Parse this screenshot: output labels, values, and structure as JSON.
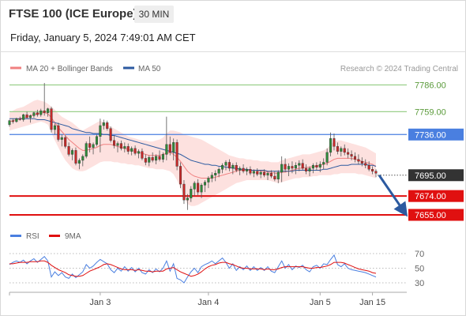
{
  "header": {
    "instrument": "FTSE 100 (ICE Europe)",
    "timeframe": "30 MIN",
    "datetime": "Friday, January 5, 2024 7:49:01 AM CET"
  },
  "chart_data": {
    "type": "candlestick",
    "legend": [
      {
        "name": "MA 20 + Bollinger Bands",
        "color": "#f08080"
      },
      {
        "name": "MA 50",
        "color": "#2c5aa0"
      }
    ],
    "copyright": "Research © 2024 Trading Central",
    "price_ylim": [
      7648,
      7790
    ],
    "levels": [
      {
        "value": 7786.0,
        "label": "7786.00",
        "kind": "resistance-minor",
        "color": "#9bd08b",
        "text_color": "#5a9a3a"
      },
      {
        "value": 7759.0,
        "label": "7759.00",
        "kind": "resistance-minor",
        "color": "#9bd08b",
        "text_color": "#5a9a3a"
      },
      {
        "value": 7736.0,
        "label": "7736.00",
        "kind": "pivot",
        "color": "#4a7fe0",
        "text_color": "#ffffff"
      },
      {
        "value": 7695.0,
        "label": "7695.00",
        "kind": "last",
        "color": "#333333",
        "text_color": "#ffffff"
      },
      {
        "value": 7674.0,
        "label": "7674.00",
        "kind": "target",
        "color": "#e01010",
        "text_color": "#ffffff"
      },
      {
        "value": 7655.0,
        "label": "7655.00",
        "kind": "target",
        "color": "#e01010",
        "text_color": "#ffffff"
      }
    ],
    "forecast_arrow": {
      "from_price": 7695,
      "to_price": 7659
    },
    "candles": [
      [
        7746,
        7751,
        7744,
        7750
      ],
      [
        7750,
        7752,
        7747,
        7749
      ],
      [
        7749,
        7753,
        7748,
        7752
      ],
      [
        7752,
        7754,
        7750,
        7751
      ],
      [
        7751,
        7757,
        7749,
        7756
      ],
      [
        7756,
        7759,
        7752,
        7753
      ],
      [
        7753,
        7756,
        7748,
        7755
      ],
      [
        7755,
        7759,
        7753,
        7758
      ],
      [
        7758,
        7761,
        7754,
        7756
      ],
      [
        7756,
        7762,
        7754,
        7760
      ],
      [
        7760,
        7788,
        7755,
        7758
      ],
      [
        7758,
        7763,
        7754,
        7762
      ],
      [
        7762,
        7764,
        7738,
        7741
      ],
      [
        7741,
        7747,
        7736,
        7745
      ],
      [
        7745,
        7748,
        7729,
        7731
      ],
      [
        7731,
        7736,
        7724,
        7733
      ],
      [
        7733,
        7735,
        7722,
        7724
      ],
      [
        7724,
        7728,
        7714,
        7716
      ],
      [
        7716,
        7722,
        7710,
        7720
      ],
      [
        7720,
        7723,
        7705,
        7707
      ],
      [
        7707,
        7712,
        7701,
        7710
      ],
      [
        7710,
        7716,
        7704,
        7714
      ],
      [
        7714,
        7729,
        7712,
        7727
      ],
      [
        7727,
        7734,
        7718,
        7723
      ],
      [
        7723,
        7728,
        7716,
        7726
      ],
      [
        7726,
        7736,
        7724,
        7734
      ],
      [
        7734,
        7752,
        7718,
        7745
      ],
      [
        7745,
        7751,
        7741,
        7748
      ],
      [
        7748,
        7750,
        7740,
        7742
      ],
      [
        7742,
        7744,
        7728,
        7730
      ],
      [
        7730,
        7735,
        7722,
        7725
      ],
      [
        7725,
        7729,
        7718,
        7727
      ],
      [
        7727,
        7730,
        7720,
        7722
      ],
      [
        7722,
        7728,
        7718,
        7724
      ],
      [
        7724,
        7727,
        7716,
        7719
      ],
      [
        7719,
        7724,
        7715,
        7722
      ],
      [
        7722,
        7725,
        7715,
        7717
      ],
      [
        7717,
        7721,
        7712,
        7719
      ],
      [
        7719,
        7722,
        7710,
        7712
      ],
      [
        7712,
        7716,
        7705,
        7708
      ],
      [
        7708,
        7715,
        7704,
        7713
      ],
      [
        7713,
        7718,
        7708,
        7710
      ],
      [
        7710,
        7716,
        7706,
        7714
      ],
      [
        7714,
        7720,
        7709,
        7711
      ],
      [
        7711,
        7718,
        7708,
        7716
      ],
      [
        7716,
        7754,
        7710,
        7726
      ],
      [
        7726,
        7734,
        7715,
        7718
      ],
      [
        7718,
        7732,
        7710,
        7728
      ],
      [
        7728,
        7731,
        7700,
        7704
      ],
      [
        7704,
        7708,
        7682,
        7686
      ],
      [
        7686,
        7690,
        7666,
        7670
      ],
      [
        7670,
        7676,
        7660,
        7672
      ],
      [
        7672,
        7684,
        7668,
        7681
      ],
      [
        7681,
        7689,
        7674,
        7687
      ],
      [
        7687,
        7691,
        7675,
        7678
      ],
      [
        7678,
        7687,
        7672,
        7685
      ],
      [
        7685,
        7690,
        7678,
        7688
      ],
      [
        7688,
        7694,
        7682,
        7692
      ],
      [
        7692,
        7698,
        7688,
        7695
      ],
      [
        7695,
        7700,
        7689,
        7697
      ],
      [
        7697,
        7703,
        7693,
        7701
      ],
      [
        7701,
        7707,
        7697,
        7705
      ],
      [
        7705,
        7710,
        7700,
        7708
      ],
      [
        7708,
        7711,
        7699,
        7702
      ],
      [
        7702,
        7707,
        7696,
        7705
      ],
      [
        7705,
        7708,
        7698,
        7700
      ],
      [
        7700,
        7704,
        7695,
        7702
      ],
      [
        7702,
        7706,
        7697,
        7699
      ],
      [
        7699,
        7703,
        7695,
        7701
      ],
      [
        7701,
        7704,
        7695,
        7697
      ],
      [
        7697,
        7701,
        7693,
        7699
      ],
      [
        7699,
        7702,
        7694,
        7696
      ],
      [
        7696,
        7700,
        7692,
        7698
      ],
      [
        7698,
        7701,
        7693,
        7695
      ],
      [
        7695,
        7699,
        7690,
        7697
      ],
      [
        7697,
        7700,
        7692,
        7694
      ],
      [
        7694,
        7699,
        7689,
        7691
      ],
      [
        7691,
        7700,
        7687,
        7698
      ],
      [
        7698,
        7714,
        7688,
        7706
      ],
      [
        7706,
        7712,
        7698,
        7701
      ],
      [
        7701,
        7707,
        7694,
        7704
      ],
      [
        7704,
        7709,
        7697,
        7702
      ],
      [
        7702,
        7708,
        7696,
        7705
      ],
      [
        7705,
        7710,
        7699,
        7707
      ],
      [
        7707,
        7711,
        7700,
        7702
      ],
      [
        7702,
        7706,
        7696,
        7699
      ],
      [
        7699,
        7704,
        7694,
        7702
      ],
      [
        7702,
        7707,
        7697,
        7705
      ],
      [
        7705,
        7708,
        7700,
        7703
      ],
      [
        7703,
        7709,
        7698,
        7706
      ],
      [
        7706,
        7712,
        7701,
        7708
      ],
      [
        7708,
        7722,
        7705,
        7718
      ],
      [
        7718,
        7738,
        7714,
        7732
      ],
      [
        7732,
        7737,
        7720,
        7724
      ],
      [
        7724,
        7728,
        7716,
        7719
      ],
      [
        7719,
        7724,
        7714,
        7722
      ],
      [
        7722,
        7726,
        7715,
        7718
      ],
      [
        7718,
        7722,
        7712,
        7716
      ],
      [
        7716,
        7720,
        7710,
        7714
      ],
      [
        7714,
        7718,
        7708,
        7711
      ],
      [
        7711,
        7716,
        7706,
        7709
      ],
      [
        7709,
        7713,
        7704,
        7707
      ],
      [
        7707,
        7711,
        7702,
        7705
      ],
      [
        7705,
        7709,
        7699,
        7701
      ],
      [
        7701,
        7704,
        7696,
        7699
      ],
      [
        7699,
        7701,
        7693,
        7697
      ]
    ],
    "bb_upper": [
      7758,
      7760,
      7762,
      7763,
      7764,
      7766,
      7768,
      7770,
      7771,
      7770,
      7769,
      7767,
      7764,
      7761,
      7757,
      7754,
      7752,
      7750,
      7748,
      7745,
      7742,
      7740,
      7742,
      7744,
      7746,
      7748,
      7750,
      7748,
      7746,
      7744,
      7742,
      7740,
      7738,
      7736,
      7734,
      7733,
      7732,
      7731,
      7730,
      7730,
      7729,
      7729,
      7730,
      7731,
      7733,
      7737,
      7740,
      7740,
      7739,
      7738,
      7736,
      7735,
      7734,
      7733,
      7732,
      7731,
      7729,
      7727,
      7725,
      7723,
      7721,
      7719,
      7717,
      7715,
      7714,
      7713,
      7712,
      7712,
      7711,
      7711,
      7710,
      7710,
      7709,
      7709,
      7709,
      7708,
      7708,
      7708,
      7710,
      7711,
      7712,
      7713,
      7714,
      7715,
      7716,
      7716,
      7716,
      7717,
      7718,
      7719,
      7720,
      7722,
      7726,
      7729,
      7730,
      7730,
      7729,
      7728,
      7727,
      7726,
      7725,
      7724,
      7723,
      7721,
      7719,
      7717
    ],
    "bb_lower": [
      7740,
      7741,
      7742,
      7743,
      7744,
      7745,
      7746,
      7747,
      7748,
      7749,
      7748,
      7746,
      7738,
      7730,
      7723,
      7716,
      7710,
      7706,
      7702,
      7700,
      7699,
      7699,
      7700,
      7702,
      7704,
      7706,
      7708,
      7709,
      7709,
      7709,
      7708,
      7708,
      7707,
      7707,
      7706,
      7706,
      7705,
      7705,
      7704,
      7703,
      7702,
      7702,
      7701,
      7701,
      7701,
      7700,
      7699,
      7696,
      7690,
      7682,
      7673,
      7666,
      7664,
      7664,
      7665,
      7667,
      7669,
      7671,
      7673,
      7675,
      7677,
      7679,
      7681,
      7683,
      7685,
      7687,
      7688,
      7689,
      7690,
      7690,
      7690,
      7690,
      7690,
      7690,
      7690,
      7689,
      7688,
      7687,
      7688,
      7689,
      7690,
      7691,
      7692,
      7692,
      7693,
      7693,
      7693,
      7694,
      7694,
      7695,
      7695,
      7695,
      7695,
      7696,
      7696,
      7697,
      7697,
      7697,
      7697,
      7697,
      7696,
      7696,
      7695,
      7694,
      7693,
      7692
    ],
    "ma20": [
      7749,
      7750,
      7751,
      7752,
      7753,
      7754,
      7755,
      7756,
      7757,
      7758,
      7758,
      7757,
      7753,
      7748,
      7743,
      7739,
      7735,
      7731,
      7728,
      7725,
      7722,
      7720,
      7720,
      7721,
      7722,
      7723,
      7725,
      7726,
      7726,
      7726,
      7725,
      7724,
      7723,
      7722,
      7721,
      7720,
      7719,
      7718,
      7717,
      7716,
      7715,
      7715,
      7715,
      7715,
      7716,
      7717,
      7718,
      7716,
      7713,
      7709,
      7704,
      7699,
      7696,
      7694,
      7693,
      7692,
      7692,
      7692,
      7692,
      7693,
      7694,
      7695,
      7696,
      7697,
      7698,
      7699,
      7700,
      7700,
      7700,
      7700,
      7700,
      7700,
      7699,
      7699,
      7698,
      7698,
      7697,
      7697,
      7698,
      7698,
      7699,
      7700,
      7701,
      7702,
      7702,
      7703,
      7703,
      7704,
      7704,
      7705,
      7706,
      7707,
      7709,
      7711,
      7712,
      7712,
      7712,
      7712,
      7712,
      7711,
      7710,
      7709,
      7708,
      7707,
      7706,
      7704
    ],
    "ma50": [
      7752,
      7752,
      7752,
      7752,
      7752,
      7752,
      7752,
      7752,
      7751,
      7751,
      7751,
      7750,
      7749,
      7748,
      7747,
      7746,
      7745,
      7744,
      7742,
      7741,
      7740,
      7739,
      7738,
      7738,
      7737,
      7737,
      7737,
      7736,
      7736,
      7735,
      7735,
      7734,
      7733,
      7732,
      7731,
      7730,
      7729,
      7728,
      7727,
      7726,
      7725,
      7724,
      7723,
      7722,
      7721,
      7720,
      7719,
      7718,
      7717,
      7716,
      7714,
      7712,
      7710,
      7709,
      7708,
      7707,
      7706,
      7706,
      7705,
      7705,
      7704,
      7704,
      7703,
      7703,
      7702,
      7702,
      7701,
      7701,
      7701,
      7700,
      7700,
      7700,
      7700,
      7700,
      7699,
      7699,
      7699,
      7699,
      7699,
      7699,
      7699,
      7699,
      7700,
      7700,
      7700,
      7700,
      7700,
      7700,
      7700,
      7700,
      7701,
      7701,
      7702,
      7703,
      7704,
      7705,
      7705,
      7705,
      7706,
      7706,
      7706,
      7706,
      7706,
      7705,
      7705,
      7704
    ],
    "rsi_panel": {
      "legend": [
        {
          "name": "RSI",
          "color": "#4a7fe0"
        },
        {
          "name": "9MA",
          "color": "#e01010"
        }
      ],
      "ylim": [
        20,
        80
      ],
      "ticks": [
        "70",
        "50",
        "30"
      ],
      "tick_values": [
        70,
        50,
        30
      ]
    },
    "rsi": [
      55,
      58,
      60,
      58,
      61,
      56,
      60,
      63,
      58,
      62,
      66,
      60,
      38,
      45,
      40,
      44,
      38,
      36,
      42,
      37,
      41,
      45,
      55,
      50,
      53,
      58,
      62,
      59,
      56,
      48,
      44,
      50,
      46,
      52,
      46,
      51,
      45,
      50,
      44,
      42,
      48,
      44,
      49,
      45,
      50,
      60,
      46,
      56,
      36,
      34,
      30,
      38,
      45,
      50,
      44,
      52,
      55,
      57,
      60,
      56,
      60,
      64,
      58,
      50,
      56,
      47,
      52,
      48,
      53,
      47,
      52,
      47,
      51,
      47,
      52,
      46,
      44,
      52,
      60,
      50,
      55,
      48,
      53,
      51,
      54,
      48,
      45,
      52,
      54,
      50,
      56,
      55,
      62,
      68,
      55,
      52,
      56,
      50,
      48,
      47,
      46,
      45,
      44,
      42,
      40,
      38
    ],
    "rsi_ma": [
      56,
      56,
      57,
      58,
      58,
      58,
      59,
      59,
      59,
      60,
      60,
      58,
      54,
      51,
      48,
      46,
      44,
      41,
      40,
      39,
      39,
      40,
      43,
      46,
      48,
      50,
      52,
      55,
      56,
      55,
      53,
      51,
      49,
      48,
      48,
      48,
      47,
      48,
      47,
      46,
      46,
      45,
      46,
      46,
      46,
      49,
      50,
      51,
      48,
      45,
      43,
      41,
      39,
      40,
      42,
      45,
      49,
      52,
      54,
      55,
      57,
      58,
      58,
      56,
      55,
      53,
      51,
      50,
      50,
      49,
      49,
      49,
      49,
      48,
      49,
      48,
      48,
      49,
      51,
      52,
      52,
      52,
      52,
      52,
      52,
      51,
      50,
      50,
      51,
      51,
      52,
      53,
      55,
      58,
      58,
      58,
      57,
      55,
      53,
      51,
      49,
      48,
      47,
      46,
      44,
      43
    ],
    "x_ticks": [
      {
        "label": "Jan 3",
        "index": 26
      },
      {
        "label": "Jan 4",
        "index": 57
      },
      {
        "label": "Jan 5",
        "index": 89
      },
      {
        "label": "Jan 15",
        "index": 104
      }
    ]
  }
}
